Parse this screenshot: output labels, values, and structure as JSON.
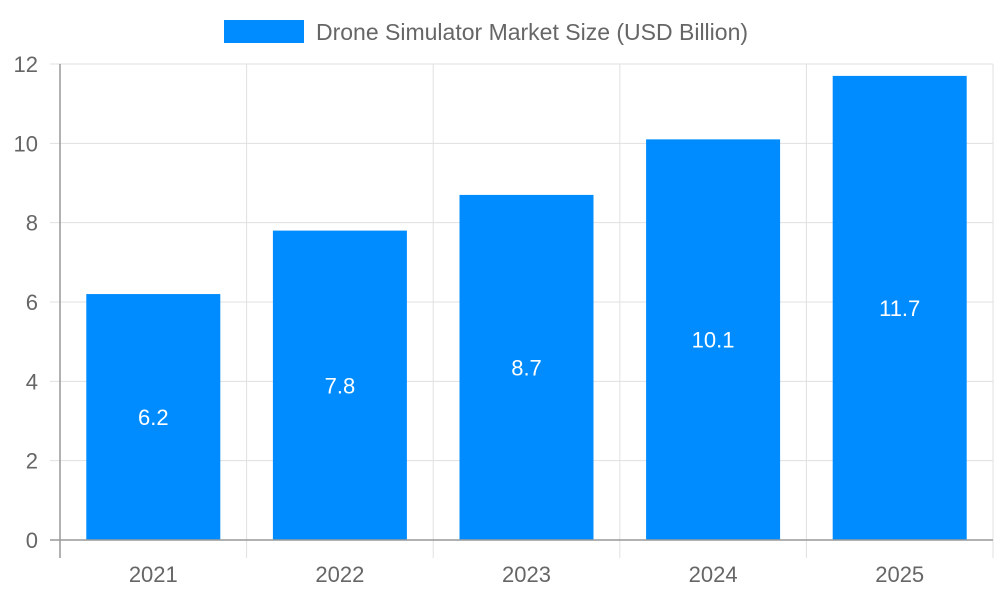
{
  "chart_data": {
    "type": "bar",
    "title": "",
    "xlabel": "",
    "ylabel": "",
    "categories": [
      "2021",
      "2022",
      "2023",
      "2024",
      "2025"
    ],
    "series": [
      {
        "name": "Drone Simulator Market Size (USD Billion)",
        "values": [
          6.2,
          7.8,
          8.7,
          10.1,
          11.7
        ],
        "color": "#008cff"
      }
    ],
    "ylim": [
      0,
      12
    ],
    "yticks": [
      0,
      2,
      4,
      6,
      8,
      10,
      12
    ],
    "grid": true,
    "legend_position": "top",
    "data_labels": true,
    "colors": {
      "text": "#666666",
      "grid": "#e0e0e0",
      "axis": "#999999",
      "data_label": "#ffffff"
    }
  }
}
